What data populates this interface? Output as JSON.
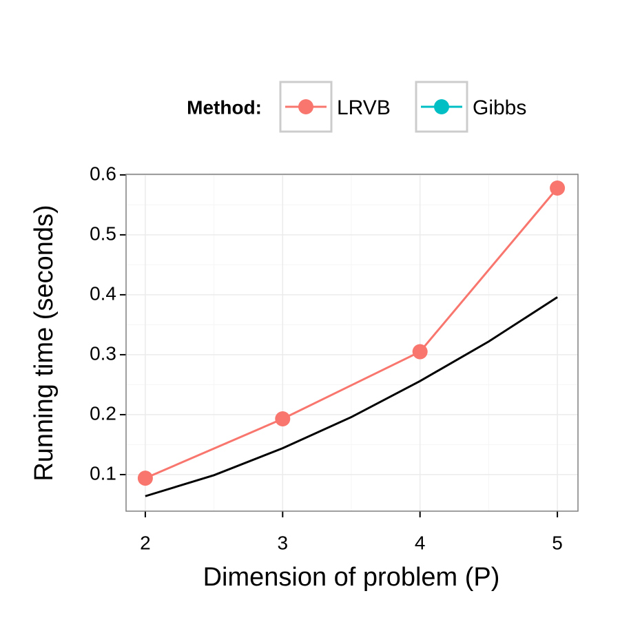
{
  "chart_data": {
    "type": "line",
    "x_label": "Dimension of problem (P)",
    "y_label": "Running time (seconds)",
    "legend_title": "Method:",
    "legend_position": "top",
    "x": [
      2,
      3,
      4,
      5
    ],
    "series": [
      {
        "name": "LRVB",
        "color": "#f8766d",
        "values": [
          0.094,
          0.193,
          0.305,
          0.578
        ]
      },
      {
        "name": "Gibbs",
        "color": "#00bfc4",
        "values": [
          null,
          null,
          null,
          null
        ]
      }
    ],
    "curve": {
      "color": "#000000",
      "x": [
        2,
        2.5,
        3,
        3.5,
        4,
        4.5,
        5
      ],
      "values": [
        0.064,
        0.099,
        0.144,
        0.196,
        0.256,
        0.322,
        0.396
      ]
    },
    "xlim": [
      1.86,
      5.15
    ],
    "ylim": [
      0.039,
      0.601
    ],
    "xticks": [
      2,
      3,
      4,
      5
    ],
    "yticks": [
      0.1,
      0.2,
      0.3,
      0.4,
      0.5,
      0.6
    ],
    "grid": true,
    "minor_grid": true
  }
}
